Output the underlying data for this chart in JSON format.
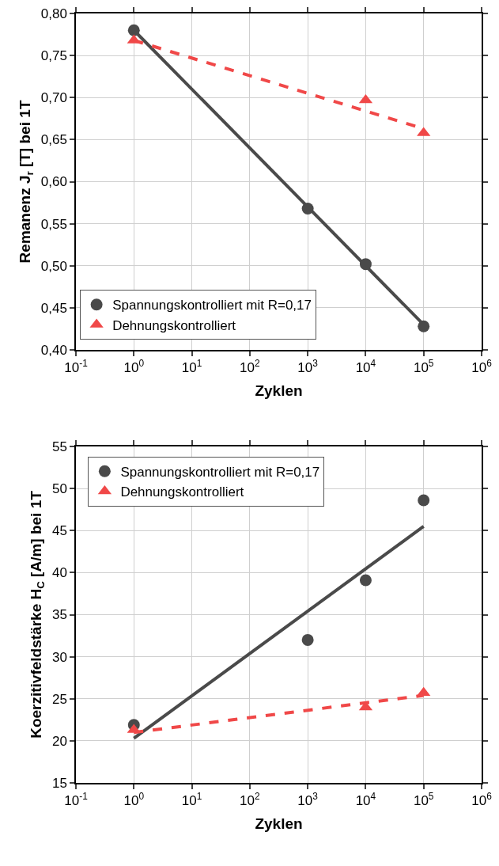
{
  "chart_data": [
    {
      "type": "scatter",
      "xlabel": "Zyklen",
      "ylabel": "Remanenz J$_{r}$ [T] bei 1T",
      "log": "x",
      "grid": true,
      "legend": "bottom left",
      "xlim": [
        0.1,
        1000000
      ],
      "xticks": [
        {
          "value": 0.1,
          "label": "10$^{-1}$"
        },
        {
          "value": 1,
          "label": "10$^{0}$"
        },
        {
          "value": 10,
          "label": "10$^{1}$"
        },
        {
          "value": 100,
          "label": "10$^{2}$"
        },
        {
          "value": 1000,
          "label": "10$^{3}$"
        },
        {
          "value": 10000,
          "label": "10$^{4}$"
        },
        {
          "value": 100000,
          "label": "10$^{5}$"
        },
        {
          "value": 1000000,
          "label": "10$^{6}$"
        }
      ],
      "ylim": [
        0.4,
        0.8
      ],
      "yticks": [
        {
          "value": 0.4,
          "label": "0,40"
        },
        {
          "value": 0.45,
          "label": "0,45"
        },
        {
          "value": 0.5,
          "label": "0,50"
        },
        {
          "value": 0.55,
          "label": "0,55"
        },
        {
          "value": 0.6,
          "label": "0,60"
        },
        {
          "value": 0.65,
          "label": "0,65"
        },
        {
          "value": 0.7,
          "label": "0,70"
        },
        {
          "value": 0.75,
          "label": "0,75"
        },
        {
          "value": 0.8,
          "label": "0,80"
        }
      ],
      "series": [
        {
          "type": "line",
          "color": "#4a4a4a",
          "line_style": "solid",
          "x": [
            1,
            100000
          ],
          "values": [
            0.78,
            0.43
          ]
        },
        {
          "type": "line",
          "color": "#f04848",
          "line_style": "dashed",
          "x": [
            1,
            100000
          ],
          "values": [
            0.768,
            0.663
          ]
        },
        {
          "type": "scatter",
          "name": "Spannungskontrolliert mit R=0,17",
          "color": "#4a4a4a",
          "marker": "circle",
          "x": [
            1,
            1000,
            10000,
            100000
          ],
          "values": [
            0.78,
            0.568,
            0.502,
            0.428
          ]
        },
        {
          "type": "scatter",
          "name": "Dehnungskontrolliert",
          "color": "#f04848",
          "marker": "triangle",
          "x": [
            1,
            10000,
            100000
          ],
          "values": [
            0.768,
            0.697,
            0.658
          ]
        }
      ]
    },
    {
      "type": "scatter",
      "xlabel": "Zyklen",
      "ylabel": "Koerzitivfeldstärke H$_{C}$ [A/m] bei 1T",
      "log": "x",
      "grid": true,
      "legend": "top left",
      "xlim": [
        0.1,
        1000000
      ],
      "xticks": [
        {
          "value": 0.1,
          "label": "10$^{-1}$"
        },
        {
          "value": 1,
          "label": "10$^{0}$"
        },
        {
          "value": 10,
          "label": "10$^{1}$"
        },
        {
          "value": 100,
          "label": "10$^{2}$"
        },
        {
          "value": 1000,
          "label": "10$^{3}$"
        },
        {
          "value": 10000,
          "label": "10$^{4}$"
        },
        {
          "value": 100000,
          "label": "10$^{5}$"
        },
        {
          "value": 1000000,
          "label": "10$^{6}$"
        }
      ],
      "ylim": [
        15,
        55
      ],
      "yticks": [
        15,
        20,
        25,
        30,
        35,
        40,
        45,
        50,
        55
      ],
      "series": [
        {
          "type": "line",
          "color": "#4a4a4a",
          "line_style": "solid",
          "x": [
            1,
            100000
          ],
          "values": [
            20.3,
            45.5
          ]
        },
        {
          "type": "line",
          "color": "#f04848",
          "line_style": "dashed",
          "x": [
            1,
            100000
          ],
          "values": [
            21.0,
            25.4
          ]
        },
        {
          "type": "scatter",
          "name": "Spannungskontrolliert mit R=0,17",
          "color": "#4a4a4a",
          "marker": "circle",
          "x": [
            1,
            1000,
            10000,
            100000
          ],
          "values": [
            21.9,
            32.0,
            39.1,
            48.6
          ]
        },
        {
          "type": "scatter",
          "name": "Dehnungskontrolliert",
          "color": "#f04848",
          "marker": "triangle",
          "x": [
            1,
            10000,
            100000
          ],
          "values": [
            21.3,
            24.0,
            25.7
          ]
        }
      ]
    }
  ]
}
